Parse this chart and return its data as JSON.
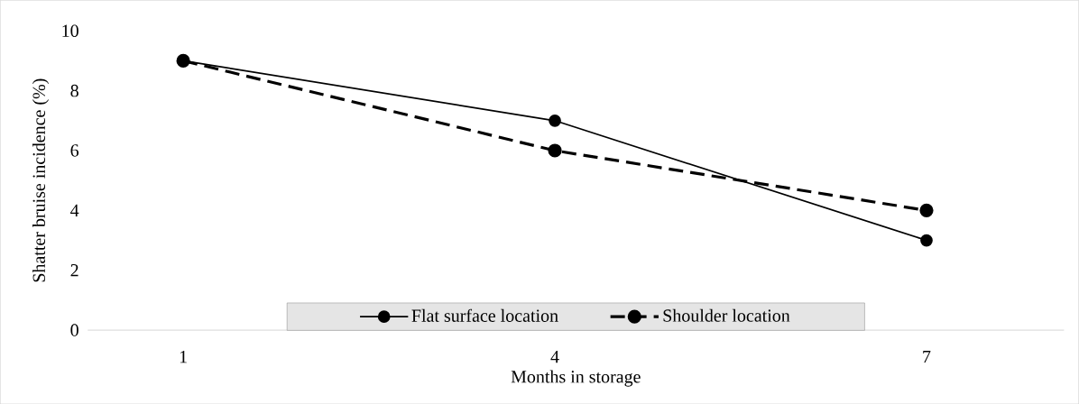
{
  "chart_data": {
    "type": "line",
    "xlabel": "Months in storage",
    "ylabel": "Shatter bruise incidence (%)",
    "categories": [
      "1",
      "4",
      "7"
    ],
    "series": [
      {
        "name": "Flat surface location",
        "color": "#000000",
        "values": [
          9,
          7,
          3
        ],
        "line_style": "solid"
      },
      {
        "name": "Shoulder location",
        "color": "#000000",
        "values": [
          9,
          6,
          4
        ],
        "line_style": "dashed"
      }
    ],
    "ylim": [
      0,
      10
    ],
    "yticks": [
      0,
      2,
      4,
      6,
      8,
      10
    ],
    "grid": false,
    "legend": "bottom",
    "marker": "circle"
  }
}
